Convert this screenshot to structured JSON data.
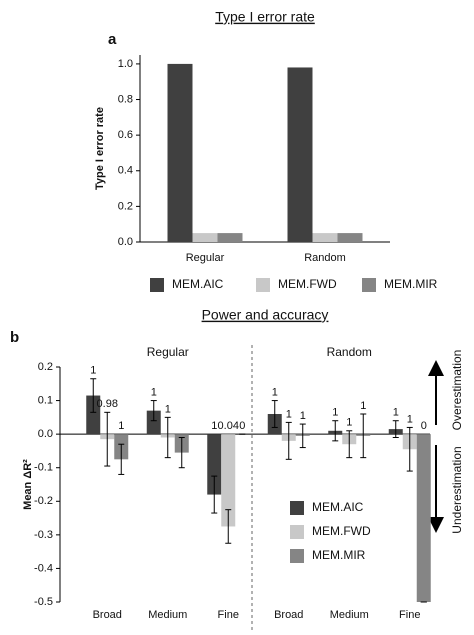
{
  "chart_data": [
    {
      "type": "bar",
      "title": "Type I error rate",
      "panel": "a",
      "ylabel": "Type I error rate",
      "categories": [
        "Regular",
        "Random"
      ],
      "series": [
        {
          "name": "MEM.AIC",
          "color": "#404040",
          "values": [
            1.0,
            0.98
          ]
        },
        {
          "name": "MEM.FWD",
          "color": "#c8c8c8",
          "values": [
            0.05,
            0.05
          ]
        },
        {
          "name": "MEM.MIR",
          "color": "#858585",
          "values": [
            0.05,
            0.05
          ]
        }
      ],
      "ylim": [
        0,
        1.05
      ],
      "yticks": [
        {
          "value": 0,
          "label": "0.0"
        },
        0.2,
        0.4,
        0.6,
        0.8,
        {
          "value": 1,
          "label": "1.0"
        }
      ],
      "legend": "bottom"
    },
    {
      "type": "bar",
      "title": "Power and accuracy",
      "panel": "b",
      "ylabel": "Mean ΔR²",
      "group_labels": [
        "Regular",
        "Random"
      ],
      "categories": [
        "Broad",
        "Medium",
        "Fine",
        "Broad",
        "Medium",
        "Fine"
      ],
      "series": [
        {
          "name": "MEM.AIC",
          "color": "#404040",
          "values": [
            0.115,
            0.07,
            -0.18,
            0.06,
            0.01,
            0.015
          ],
          "errors": [
            0.05,
            0.03,
            0.055,
            0.04,
            0.03,
            0.025
          ],
          "power": [
            1,
            1,
            1,
            1,
            1,
            1
          ]
        },
        {
          "name": "MEM.FWD",
          "color": "#c8c8c8",
          "values": [
            -0.015,
            -0.01,
            -0.275,
            -0.02,
            -0.03,
            -0.045
          ],
          "errors": [
            0.08,
            0.06,
            0.05,
            0.055,
            0.04,
            0.065
          ],
          "power": [
            0.98,
            1,
            0.04,
            1,
            1,
            1
          ]
        },
        {
          "name": "MEM.MIR",
          "color": "#858585",
          "values": [
            -0.075,
            -0.055,
            0,
            -0.005,
            -0.005,
            -0.5
          ],
          "errors": [
            0.045,
            0.045,
            0,
            0.035,
            0.065,
            0
          ],
          "power": [
            1,
            null,
            0,
            1,
            1,
            0
          ]
        }
      ],
      "ylim": [
        -0.5,
        0.2
      ],
      "yticks": [
        0.2,
        0.1,
        {
          "value": 0,
          "label": "0.0"
        },
        -0.1,
        -0.2,
        -0.3,
        -0.4,
        -0.5
      ],
      "annotations": [
        "Overestimation",
        "Underestimation"
      ],
      "legend": "lower right"
    }
  ]
}
